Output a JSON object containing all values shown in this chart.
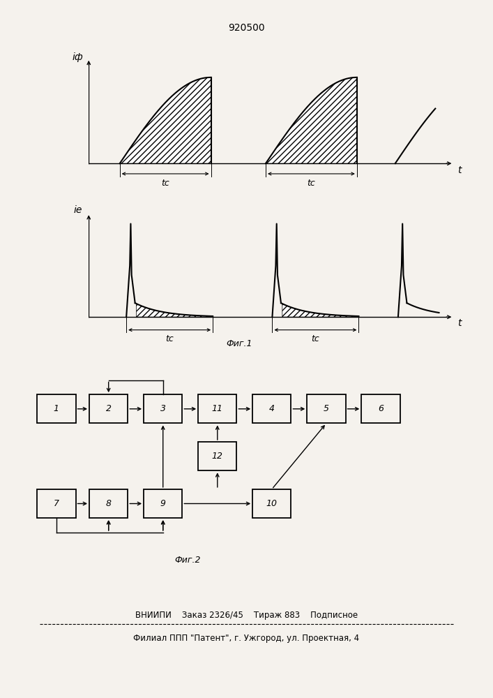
{
  "title": "920500",
  "fig1_label": "Фиг.1",
  "fig2_label": "Фиг.2",
  "footer_line1": "ВНИИПИ    Заказ 2326/45    Тираж 883    Подписное",
  "footer_line2": "Филиал ППП \"Патент\", г. Ужгород, ул. Проектная, 4",
  "ylabel_top": "iф",
  "ylabel_bottom": "iе",
  "xlabel": "t",
  "tc_label": "tс",
  "hatch_pattern": "////",
  "background": "#f5f2ed",
  "boxes_top_row": [
    "1",
    "2",
    "3",
    "11",
    "4",
    "5",
    "6"
  ],
  "boxes_bottom_row": [
    "7",
    "8",
    "9",
    "10"
  ],
  "box12_label": "12"
}
